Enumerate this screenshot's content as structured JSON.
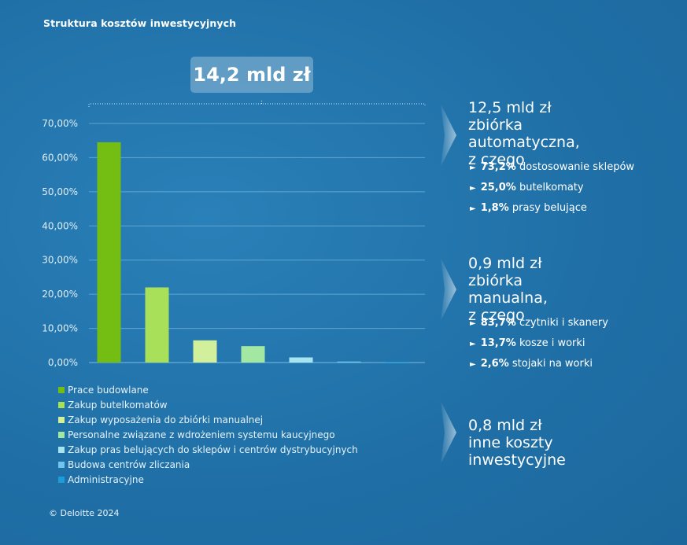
{
  "title": "Struktura kosztów inwestycyjnych",
  "total": "14,2 mld zł",
  "copyright": "© Deloitte 2024",
  "colors": {
    "grid": "#6fb3dc",
    "axis_text": "#e0eef8"
  },
  "chart_data": {
    "type": "bar",
    "categories": [
      "Prace budowlane",
      "Zakup butelkomatów",
      "Zakup wyposażenia do zbiórki manualnej",
      "Personalne związane z wdrożeniem systemu kaucyjnego",
      "Zakup pras belujących do sklepów i centrów dystrybucyjnych",
      "Budowa centrów zliczania",
      "Administracyjne"
    ],
    "values": [
      64.5,
      22.0,
      6.5,
      4.8,
      1.5,
      0.3,
      0.05
    ],
    "colors": [
      "#74bd12",
      "#a8e05a",
      "#d2ef9c",
      "#a2e8a2",
      "#a5e4f0",
      "#6fc5ee",
      "#1f9bd9"
    ],
    "ylim": [
      0,
      70
    ],
    "yticks": [
      "0,00%",
      "10,00%",
      "20,00%",
      "30,00%",
      "40,00%",
      "50,00%",
      "60,00%",
      "70,00%"
    ],
    "ytick_values": [
      0,
      10,
      20,
      30,
      40,
      50,
      60,
      70
    ],
    "legend": "bottom",
    "grid": true
  },
  "breakdown": [
    {
      "heading": [
        "12,5 mld zł",
        "zbiórka automatyczna,",
        "z czego"
      ],
      "items": [
        {
          "value": "73,2%",
          "text": "dostosowanie sklepów"
        },
        {
          "value": "25,0%",
          "text": "butelkomaty"
        },
        {
          "value": "1,8%",
          "text": "prasy belujące"
        }
      ]
    },
    {
      "heading": [
        "0,9 mld zł zbiórka",
        "manualna,",
        "z czego"
      ],
      "items": [
        {
          "value": "83,7%",
          "text": "czytniki i skanery"
        },
        {
          "value": "13,7%",
          "text": "kosze i worki"
        },
        {
          "value": "2,6%",
          "text": "stojaki na worki"
        }
      ]
    },
    {
      "heading": [
        "0,8 mld zł inne koszty",
        "inwestycyjne"
      ],
      "items": []
    }
  ]
}
